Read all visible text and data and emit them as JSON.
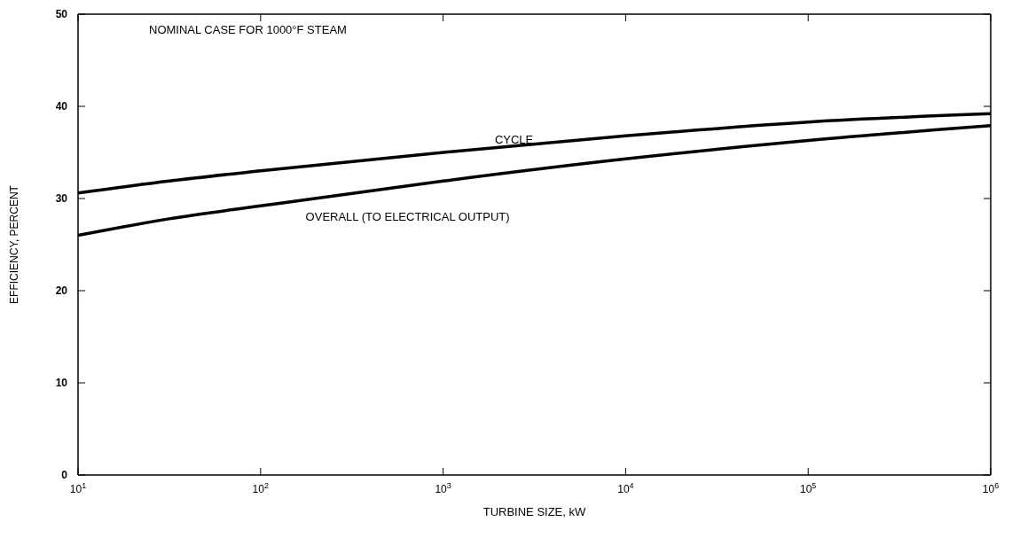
{
  "chart_data": {
    "type": "line",
    "xlabel": "TURBINE SIZE, kW",
    "ylabel": "EFFICIENCY, PERCENT",
    "annotations": [
      "NOMINAL CASE FOR 1000°F STEAM"
    ],
    "log": "x",
    "marker": "none",
    "line_style": "solid",
    "x": [
      10,
      31.6,
      100,
      1000,
      10000,
      100000,
      1000000
    ],
    "xlim": [
      10,
      1000000
    ],
    "xticks": [
      {
        "value": 10,
        "label": "10$^{1}$"
      },
      {
        "value": 100,
        "label": "10$^{2}$"
      },
      {
        "value": 1000,
        "label": "10$^{3}$"
      },
      {
        "value": 10000,
        "label": "10$^{4}$"
      },
      {
        "value": 100000,
        "label": "10$^{5}$"
      },
      {
        "value": 1000000,
        "label": "10$^{6}$"
      }
    ],
    "ylim": [
      0,
      50
    ],
    "yticks": [
      0,
      10,
      20,
      30,
      40,
      50
    ],
    "series": [
      {
        "name": "CYCLE",
        "color": "#000000",
        "values": [
          30.6,
          31.9,
          33.0,
          35.0,
          36.8,
          38.3,
          39.2
        ]
      },
      {
        "name": "OVERALL (TO ELECTRICAL OUTPUT)",
        "color": "#000000",
        "values": [
          26.0,
          27.8,
          29.2,
          31.9,
          34.3,
          36.3,
          37.9
        ]
      }
    ]
  }
}
